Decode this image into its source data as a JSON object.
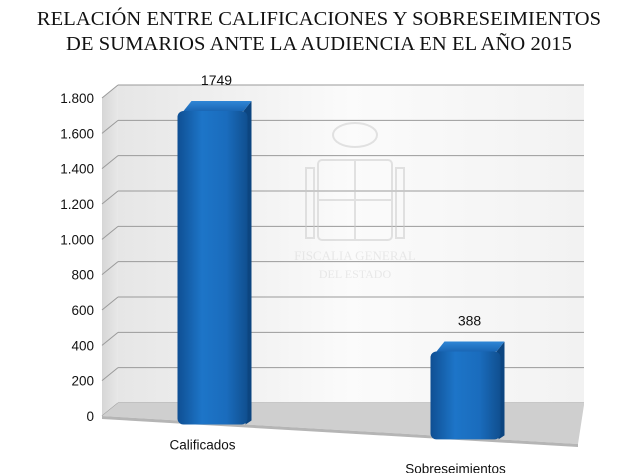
{
  "chart_data": {
    "type": "bar",
    "title_lines": [
      "RELACIÓN ENTRE CALIFICACIONES Y SOBRESEIMIENTOS",
      "DE SUMARIOS ANTE LA  AUDIENCIA EN EL AÑO 2015"
    ],
    "categories": [
      "Calificados",
      "Sobreseimientos"
    ],
    "values": [
      1749,
      388
    ],
    "data_labels": [
      "1749",
      "388"
    ],
    "ylim": [
      0,
      1800
    ],
    "y_ticks": [
      0,
      200,
      400,
      600,
      800,
      1000,
      1200,
      1400,
      1600,
      1800
    ],
    "y_tick_labels": [
      "0",
      "200",
      "400",
      "600",
      "800",
      "1.000",
      "1.200",
      "1.400",
      "1.600",
      "1.800"
    ],
    "grid": true,
    "legend": "none",
    "bar_color": "#1a6fc0",
    "watermark_lines": [
      "FISCALIA GENERAL",
      "DEL ESTADO"
    ]
  }
}
